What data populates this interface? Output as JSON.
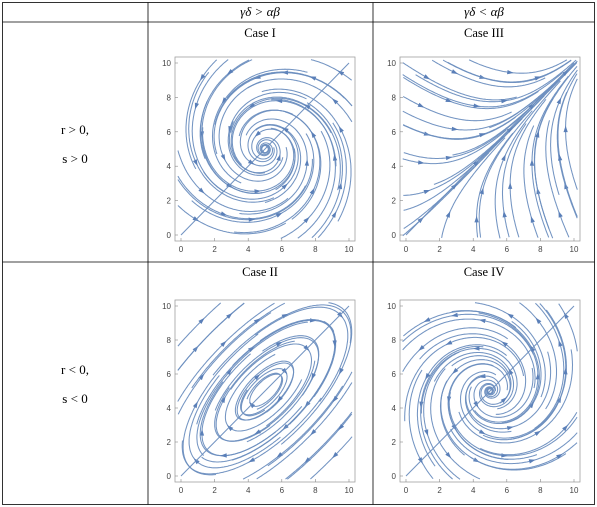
{
  "header": {
    "col1": "γδ > αβ",
    "col2": "γδ < αβ"
  },
  "rows": [
    {
      "label_line1": "r > 0,",
      "label_line2": "s > 0"
    },
    {
      "label_line1": "r < 0,",
      "label_line2": "s < 0"
    }
  ],
  "panels": [
    {
      "title": "Case I",
      "flow": "I"
    },
    {
      "title": "Case III",
      "flow": "III"
    },
    {
      "title": "Case II",
      "flow": "II"
    },
    {
      "title": "Case IV",
      "flow": "IV"
    }
  ],
  "axis": {
    "xticks": [
      "0",
      "2",
      "4",
      "6",
      "8",
      "10"
    ],
    "yticks": [
      "0",
      "2",
      "4",
      "6",
      "8",
      "10"
    ],
    "range": [
      0,
      10
    ]
  },
  "colors": {
    "stream": "#6c8ebf",
    "arrow": "#5a7fb8"
  }
}
